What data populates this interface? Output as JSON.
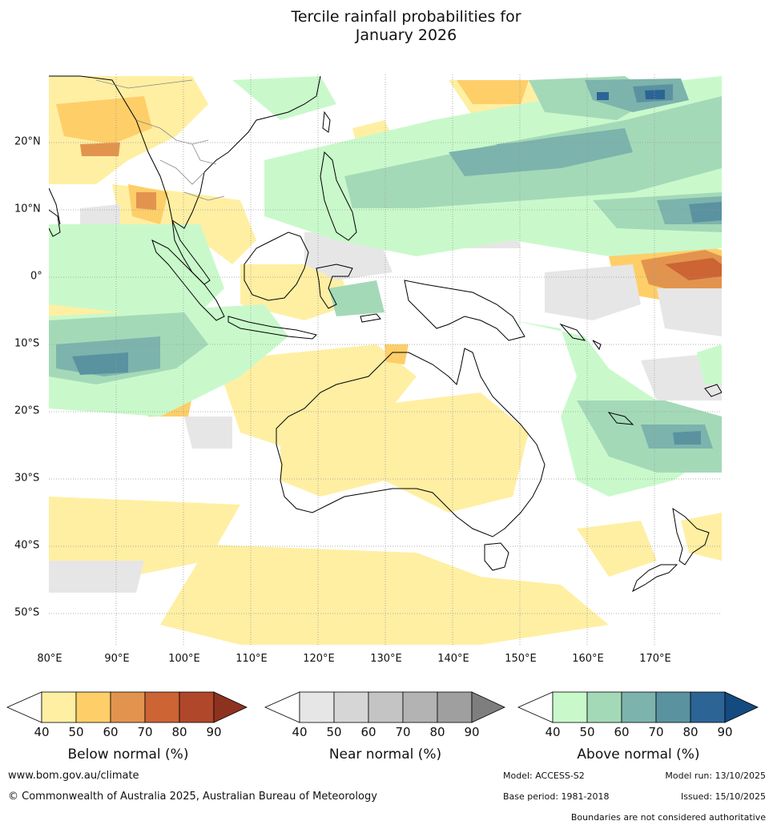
{
  "title": {
    "line1": "Tercile rainfall probabilities for",
    "line2": "January 2026"
  },
  "map": {
    "lon_labels": [
      "80°E",
      "90°E",
      "100°E",
      "110°E",
      "120°E",
      "130°E",
      "140°E",
      "150°E",
      "160°E",
      "170°E"
    ],
    "lat_labels": [
      "20°N",
      "10°N",
      "0°",
      "10°S",
      "20°S",
      "30°S",
      "40°S",
      "50°S"
    ],
    "extent": {
      "lon_min": 80,
      "lon_max": 180,
      "lat_min": -55,
      "lat_max": 30
    },
    "outline_color": "#000000",
    "border_color": "#888888",
    "grid_color": "#999999"
  },
  "legends": [
    {
      "name": "Below normal (%)",
      "ticks": [
        "40",
        "50",
        "60",
        "70",
        "80",
        "90"
      ],
      "colors": [
        "#ffefa3",
        "#fece69",
        "#e2944e",
        "#cc6434",
        "#b0472a",
        "#8e3220"
      ]
    },
    {
      "name": "Near normal (%)",
      "ticks": [
        "40",
        "50",
        "60",
        "70",
        "80",
        "90"
      ],
      "colors": [
        "#e6e6e6",
        "#d6d6d6",
        "#c4c4c4",
        "#b3b3b3",
        "#9f9f9f",
        "#7e7e7e"
      ]
    },
    {
      "name": "Above normal (%)",
      "ticks": [
        "40",
        "50",
        "60",
        "70",
        "80",
        "90"
      ],
      "colors": [
        "#c9f9cb",
        "#a4d9b8",
        "#7cb3ac",
        "#5a92a0",
        "#2d6496",
        "#134a80"
      ]
    }
  ],
  "footer": {
    "website": "www.bom.gov.au/climate",
    "copyright": "© Commonwealth of Australia 2025, Australian Bureau of Meteorology",
    "model": "Model: ACCESS-S2",
    "model_run": "Model run: 13/10/2025",
    "base_period": "Base period: 1981-2018",
    "issued": "Issued: 15/10/2025",
    "disclaimer": "Boundaries are not considered authoritative"
  }
}
